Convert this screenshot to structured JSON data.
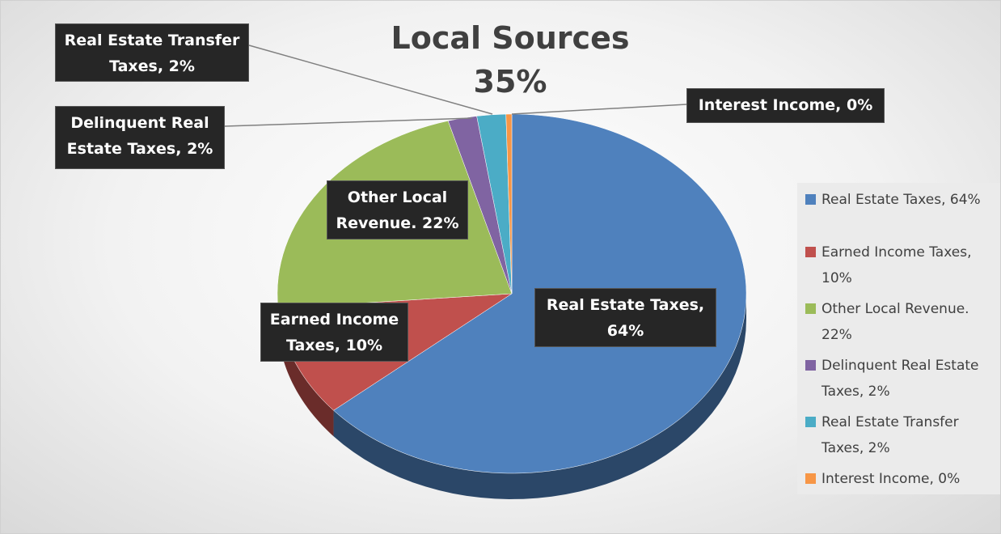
{
  "chart_data": {
    "type": "pie",
    "title": "Local Sources",
    "subtitle": "35%",
    "categories": [
      "Real Estate Taxes, 64%",
      "Earned Income Taxes, 10%",
      "Other Local Revenue. 22%",
      "Delinquent Real Estate Taxes, 2%",
      "Real Estate Transfer Taxes, 2%",
      "Interest Income, 0%"
    ],
    "values": [
      64,
      10,
      22,
      2,
      2,
      0.4
    ],
    "colors": [
      "#4f81bd",
      "#c0504d",
      "#9bbb59",
      "#8064a2",
      "#4bacc6",
      "#f79646"
    ],
    "legend": "right"
  }
}
